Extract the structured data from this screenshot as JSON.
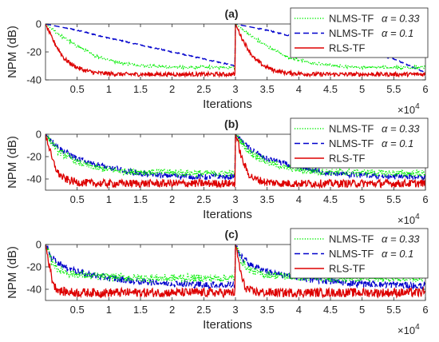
{
  "figure": {
    "xtick_multiplier_base": "×10",
    "xtick_multiplier_exp": "4",
    "legend": [
      {
        "label": "NLMS-TF",
        "alpha_text": "α = 0.33",
        "color": "#00ee00",
        "style": "dotted"
      },
      {
        "label": "NLMS-TF",
        "alpha_text": "α = 0.1",
        "color": "#0000cc",
        "style": "dashed"
      },
      {
        "label": "RLS-TF",
        "alpha_text": "",
        "color": "#dd0000",
        "style": "solid"
      }
    ]
  },
  "chart_data": [
    {
      "type": "line",
      "title": "(a)",
      "xlabel": "Iterations",
      "ylabel": "NPM (dB)",
      "xlim": [
        0,
        60000
      ],
      "ylim": [
        -40,
        0
      ],
      "xticks": [
        5000,
        10000,
        15000,
        20000,
        25000,
        30000,
        35000,
        40000,
        45000,
        50000,
        55000,
        60000
      ],
      "xtick_labels": [
        "0.5",
        "1",
        "1.5",
        "2",
        "2.5",
        "3",
        "3.5",
        "4",
        "4.5",
        "5",
        "5.5",
        "6"
      ],
      "yticks": [
        0,
        -20,
        -40
      ],
      "ytick_labels": [
        "0",
        "-20",
        "-40"
      ],
      "grid": false,
      "legend_position": "top-right",
      "series": [
        {
          "name": "NLMS-TF α = 0.33",
          "color": "#00ee00",
          "x": [
            0,
            2000,
            5000,
            8000,
            12000,
            16000,
            20000,
            25000,
            29990,
            30000,
            32000,
            35000,
            38000,
            42000,
            46000,
            50000,
            55000,
            60000
          ],
          "y": [
            0,
            -7,
            -16,
            -23,
            -28,
            -30,
            -31,
            -31,
            -31,
            0,
            -7,
            -16,
            -23,
            -28,
            -30,
            -31,
            -31,
            -31
          ]
        },
        {
          "name": "NLMS-TF α = 0.1",
          "color": "#0000cc",
          "x": [
            0,
            5000,
            10000,
            15000,
            20000,
            25000,
            29990,
            30000,
            35000,
            40000,
            45000,
            50000,
            55000,
            60000
          ],
          "y": [
            0,
            -4.5,
            -10,
            -15,
            -20,
            -25,
            -30,
            0,
            -4.5,
            -10,
            -15,
            -20,
            -25,
            -35
          ]
        },
        {
          "name": "RLS-TF",
          "color": "#dd0000",
          "x": [
            0,
            500,
            1000,
            2000,
            3000,
            4500,
            6000,
            8000,
            12000,
            20000,
            29990,
            30000,
            30500,
            31000,
            32000,
            33000,
            34500,
            36000,
            38000,
            42000,
            50000,
            60000
          ],
          "y": [
            0,
            -5,
            -10,
            -18,
            -25,
            -30,
            -33,
            -35,
            -36,
            -36,
            -36,
            0,
            -5,
            -10,
            -18,
            -25,
            -30,
            -33,
            -35,
            -36,
            -36,
            -36
          ]
        }
      ]
    },
    {
      "type": "line",
      "title": "(b)",
      "xlabel": "Iterations",
      "ylabel": "NPM (dB)",
      "xlim": [
        0,
        60000
      ],
      "ylim": [
        -50,
        0
      ],
      "xticks": [
        5000,
        10000,
        15000,
        20000,
        25000,
        30000,
        35000,
        40000,
        45000,
        50000,
        55000,
        60000
      ],
      "xtick_labels": [
        "0.5",
        "1",
        "1.5",
        "2",
        "2.5",
        "3",
        "3.5",
        "4",
        "4.5",
        "5",
        "5.5",
        "6"
      ],
      "yticks": [
        0,
        -20,
        -40
      ],
      "ytick_labels": [
        "0",
        "-20",
        "-40"
      ],
      "grid": false,
      "legend_position": "top-right",
      "series": [
        {
          "name": "NLMS-TF α = 0.33",
          "color": "#00ee00",
          "x": [
            0,
            2000,
            5000,
            8000,
            12000,
            16000,
            20000,
            25000,
            29990,
            30000,
            32000,
            35000,
            38000,
            42000,
            46000,
            50000,
            55000,
            60000
          ],
          "y": [
            0,
            -15,
            -25,
            -30,
            -33,
            -34,
            -34,
            -35,
            -35,
            0,
            -15,
            -25,
            -30,
            -33,
            -34,
            -34,
            -35,
            -35
          ]
        },
        {
          "name": "NLMS-TF α = 0.1",
          "color": "#0000cc",
          "x": [
            0,
            2000,
            5000,
            10000,
            15000,
            20000,
            25000,
            29990,
            30000,
            32000,
            35000,
            40000,
            45000,
            50000,
            55000,
            60000
          ],
          "y": [
            0,
            -12,
            -22,
            -30,
            -35,
            -37,
            -38,
            -38,
            0,
            -12,
            -22,
            -30,
            -35,
            -37,
            -38,
            -38
          ]
        },
        {
          "name": "RLS-TF",
          "color": "#dd0000",
          "x": [
            0,
            500,
            1000,
            2000,
            3000,
            5000,
            8000,
            15000,
            29990,
            30000,
            30500,
            31000,
            32000,
            33000,
            35000,
            38000,
            45000,
            60000
          ],
          "y": [
            0,
            -10,
            -22,
            -35,
            -40,
            -43,
            -44,
            -44,
            -44,
            0,
            -10,
            -22,
            -35,
            -40,
            -43,
            -44,
            -44,
            -44
          ]
        }
      ]
    },
    {
      "type": "line",
      "title": "(c)",
      "xlabel": "Iterations",
      "ylabel": "NPM (dB)",
      "xlim": [
        0,
        60000
      ],
      "ylim": [
        -50,
        0
      ],
      "xticks": [
        5000,
        10000,
        15000,
        20000,
        25000,
        30000,
        35000,
        40000,
        45000,
        50000,
        55000,
        60000
      ],
      "xtick_labels": [
        "0.5",
        "1",
        "1.5",
        "2",
        "2.5",
        "3",
        "3.5",
        "4",
        "4.5",
        "5",
        "5.5",
        "6"
      ],
      "yticks": [
        0,
        -20,
        -40
      ],
      "ytick_labels": [
        "0",
        "-20",
        "-40"
      ],
      "grid": false,
      "legend_position": "top-right",
      "series": [
        {
          "name": "NLMS-TF α = 0.33",
          "color": "#00ee00",
          "x": [
            0,
            1000,
            2000,
            4000,
            7000,
            10000,
            15000,
            20000,
            29990,
            30000,
            31000,
            32000,
            34000,
            37000,
            40000,
            45000,
            50000,
            60000
          ],
          "y": [
            0,
            -15,
            -22,
            -26,
            -28,
            -29,
            -30,
            -30,
            -30,
            0,
            -15,
            -22,
            -26,
            -28,
            -29,
            -30,
            -30,
            -30
          ]
        },
        {
          "name": "NLMS-TF α = 0.1",
          "color": "#0000cc",
          "x": [
            0,
            1000,
            3000,
            6000,
            10000,
            15000,
            20000,
            25000,
            29990,
            30000,
            31000,
            33000,
            36000,
            40000,
            45000,
            50000,
            55000,
            60000
          ],
          "y": [
            0,
            -12,
            -20,
            -26,
            -30,
            -33,
            -35,
            -36,
            -36,
            0,
            -12,
            -20,
            -26,
            -30,
            -33,
            -35,
            -36,
            -37
          ]
        },
        {
          "name": "RLS-TF",
          "color": "#dd0000",
          "x": [
            0,
            500,
            1000,
            1500,
            2500,
            5000,
            15000,
            29990,
            30000,
            30500,
            31000,
            31500,
            32500,
            35000,
            45000,
            60000
          ],
          "y": [
            0,
            -15,
            -30,
            -38,
            -42,
            -43,
            -43,
            -43,
            0,
            -15,
            -30,
            -38,
            -42,
            -43,
            -43,
            -43
          ]
        }
      ]
    }
  ]
}
